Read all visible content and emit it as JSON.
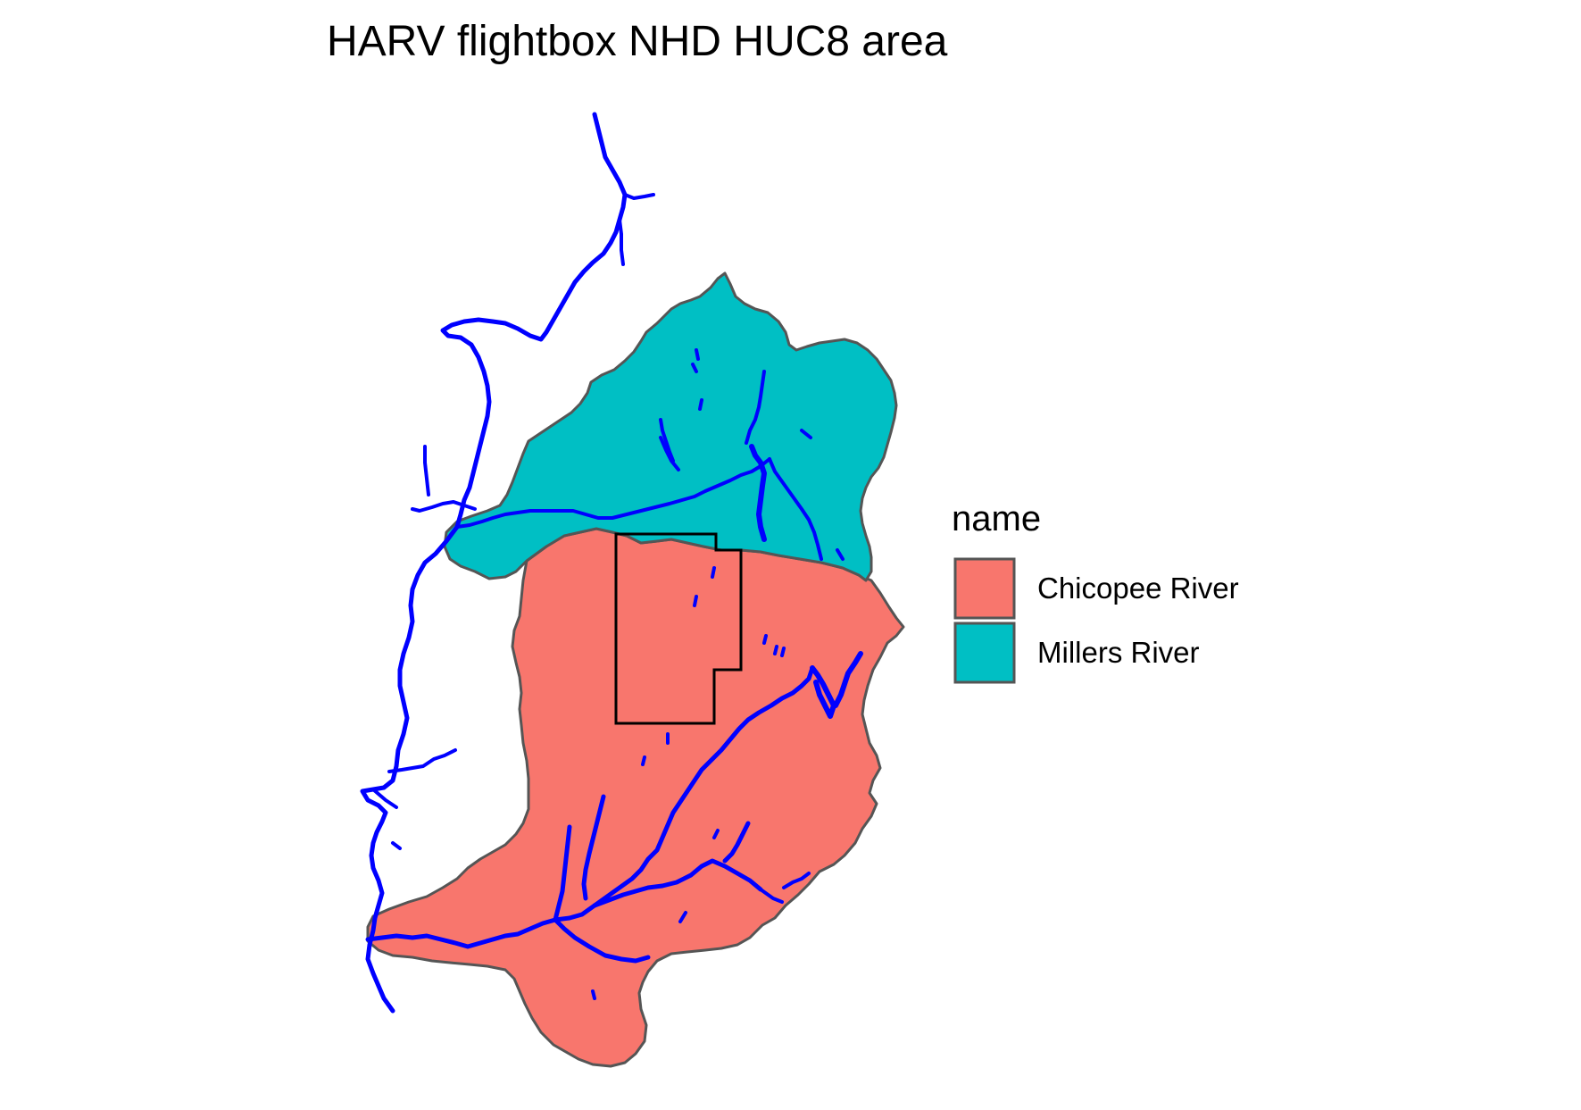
{
  "title": "HARV flightbox NHD HUC8 area",
  "legend": {
    "title": "name",
    "items": [
      {
        "label": "Chicopee River",
        "color": "#F8766D"
      },
      {
        "label": "Millers River",
        "color": "#00BFC4"
      }
    ]
  },
  "colors": {
    "chicopee_fill": "#F8766D",
    "millers_fill": "#00BFC4",
    "boundary_stroke": "#555555",
    "flowline": "#0000FF",
    "flightbox_stroke": "#000000"
  },
  "features": {
    "watersheds": [
      "Chicopee River",
      "Millers River"
    ],
    "overlays": [
      "flowlines",
      "flightbox"
    ]
  }
}
